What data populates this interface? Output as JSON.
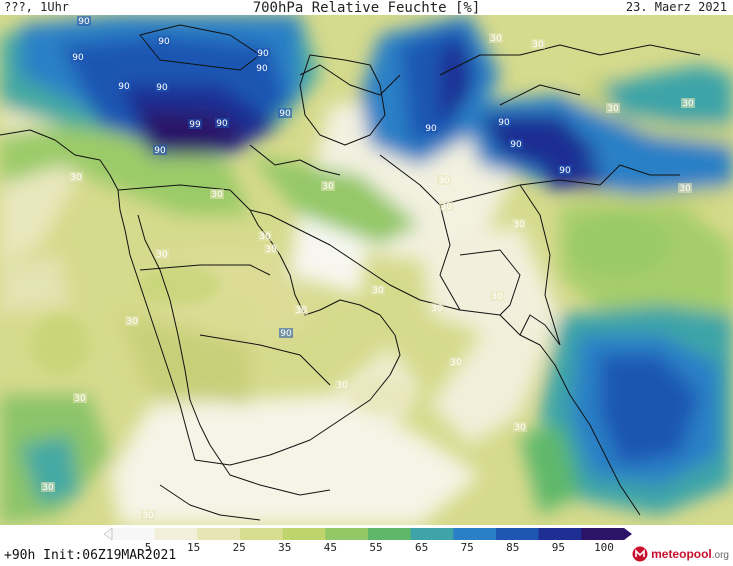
{
  "header": {
    "left": "???, 1Uhr",
    "title": "700hPa Relative Feuchte [%]",
    "date": "23. Maerz 2021"
  },
  "footer": {
    "run": "+90h Init:06Z19MAR2021",
    "logo_text": "meteopool",
    "logo_suffix": ".org"
  },
  "colorbar": {
    "ticks": [
      "5",
      "15",
      "25",
      "35",
      "45",
      "55",
      "65",
      "75",
      "85",
      "95",
      "100"
    ],
    "colors": [
      "#f7f7f7",
      "#f1efd9",
      "#e7e5b3",
      "#d8dc8f",
      "#c0d46e",
      "#94c867",
      "#5fb86a",
      "#3ea4a8",
      "#2a7fc7",
      "#1e56b3",
      "#1d2f93",
      "#2b1468"
    ]
  },
  "map": {
    "contour_labels": [
      "90",
      "90",
      "90",
      "90",
      "90",
      "90",
      "90",
      "90",
      "99",
      "90",
      "90",
      "90",
      "30",
      "30",
      "30",
      "30",
      "30",
      "30",
      "30",
      "30",
      "30",
      "30",
      "30",
      "30",
      "30",
      "30",
      "30",
      "30",
      "90",
      "90",
      "90",
      "90",
      "30",
      "30",
      "30",
      "30",
      "30",
      "30",
      "30",
      "30",
      "30"
    ]
  }
}
